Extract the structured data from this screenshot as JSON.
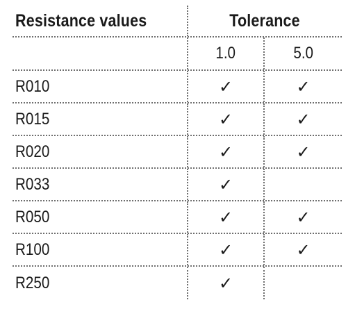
{
  "table": {
    "headers": {
      "resistance": "Resistance values",
      "tolerance": "Tolerance"
    },
    "tolerance_columns": [
      "1.0",
      "5.0"
    ],
    "check_glyph": "✓",
    "rows": [
      {
        "name": "R010",
        "tol_1_0": "✓",
        "tol_5_0": "✓"
      },
      {
        "name": "R015",
        "tol_1_0": "✓",
        "tol_5_0": "✓"
      },
      {
        "name": "R020",
        "tol_1_0": "✓",
        "tol_5_0": "✓"
      },
      {
        "name": "R033",
        "tol_1_0": "✓",
        "tol_5_0": ""
      },
      {
        "name": "R050",
        "tol_1_0": "✓",
        "tol_5_0": "✓"
      },
      {
        "name": "R100",
        "tol_1_0": "✓",
        "tol_5_0": "✓"
      },
      {
        "name": "R250",
        "tol_1_0": "✓",
        "tol_5_0": ""
      }
    ]
  }
}
